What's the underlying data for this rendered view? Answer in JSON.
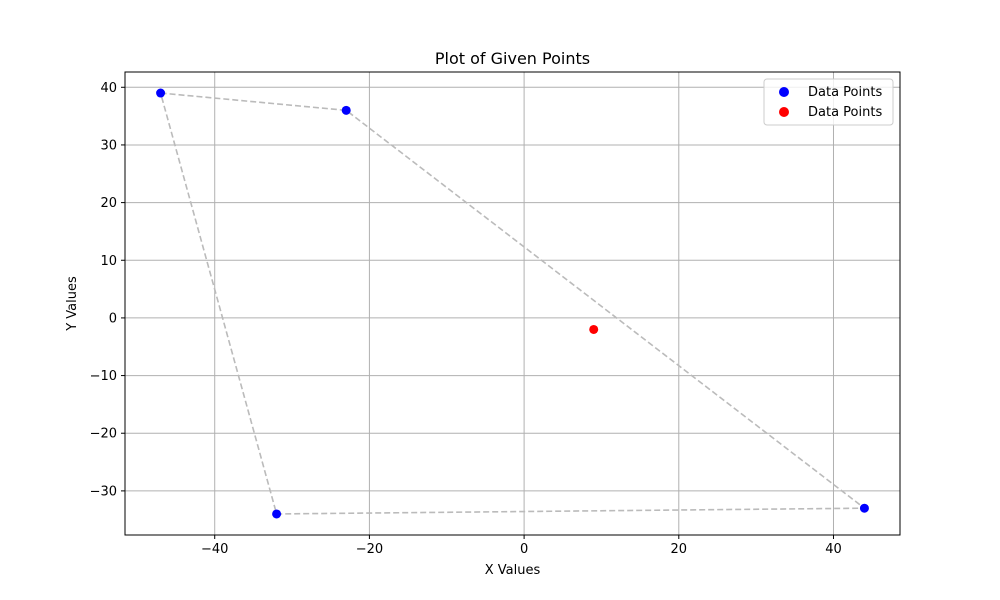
{
  "chart_data": {
    "type": "scatter",
    "title": "Plot of Given Points",
    "xlabel": "X Values",
    "ylabel": "Y Values",
    "xlim": [
      -51.6,
      48.6
    ],
    "ylim": [
      -37.65,
      42.65
    ],
    "xticks": [
      -40,
      -20,
      0,
      20,
      40
    ],
    "yticks": [
      -30,
      -20,
      -10,
      0,
      10,
      20,
      30,
      40
    ],
    "grid": true,
    "legend_position": "top-right",
    "series": [
      {
        "name": "Data Points",
        "color": "#0000ff",
        "points": [
          [
            -47,
            39
          ],
          [
            -23,
            36
          ],
          [
            44,
            -33
          ],
          [
            -32,
            -34
          ]
        ]
      },
      {
        "name": "Data Points",
        "color": "#ff0000",
        "points": [
          [
            9,
            -2
          ]
        ]
      }
    ],
    "hull_line": {
      "color": "#bbbbbb",
      "style": "dashed",
      "points": [
        [
          -47,
          39
        ],
        [
          -23,
          36
        ],
        [
          44,
          -33
        ],
        [
          -32,
          -34
        ],
        [
          -47,
          39
        ]
      ]
    }
  }
}
